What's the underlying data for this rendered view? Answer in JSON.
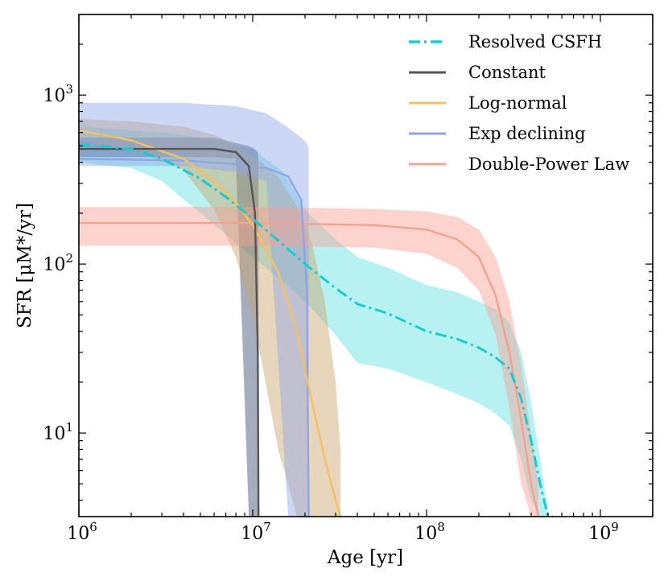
{
  "chart_data": {
    "type": "line",
    "xlabel": "Age [yr]",
    "ylabel": "SFR [μM*/yr]",
    "xscale": "log",
    "yscale": "log",
    "xlim": [
      1000000,
      2000000000
    ],
    "ylim": [
      3.2,
      3000
    ],
    "x_ticks": [
      {
        "value": 1000000,
        "base": "10",
        "exp": "6"
      },
      {
        "value": 10000000,
        "base": "10",
        "exp": "7"
      },
      {
        "value": 100000000,
        "base": "10",
        "exp": "8"
      },
      {
        "value": 1000000000,
        "base": "10",
        "exp": "9"
      }
    ],
    "y_ticks": [
      {
        "value": 10,
        "base": "10",
        "exp": "1"
      },
      {
        "value": 100,
        "base": "10",
        "exp": "2"
      },
      {
        "value": 1000,
        "base": "10",
        "exp": "3"
      }
    ],
    "legend_position": "top-right",
    "grid": false,
    "series": [
      {
        "name": "Resolved CSFH",
        "color": "#17cdd0",
        "band_color": "#5fe0e2",
        "dash": "dashdot",
        "x": [
          1000000,
          2000000,
          3000000,
          5000000,
          7000000,
          10000000,
          15000000,
          20000000,
          30000000,
          40000000,
          60000000,
          100000000,
          150000000,
          200000000,
          250000000,
          300000000,
          350000000,
          400000000,
          450000000,
          480000000,
          500000000
        ],
        "y": [
          510,
          480,
          420,
          320,
          250,
          185,
          130,
          100,
          72,
          58,
          51,
          40,
          36,
          32,
          28,
          24,
          16,
          9,
          5,
          3.8,
          3.2
        ],
        "lower": [
          400,
          370,
          310,
          200,
          150,
          110,
          78,
          60,
          38,
          26,
          24,
          20,
          17,
          15,
          13,
          11,
          7,
          4,
          3.2,
          3.2,
          3.2
        ],
        "upper": [
          650,
          620,
          600,
          560,
          520,
          480,
          350,
          210,
          140,
          110,
          95,
          75,
          68,
          60,
          54,
          45,
          30,
          15,
          7,
          4.5,
          3.5
        ]
      },
      {
        "name": "Constant",
        "color": "#555555",
        "band_color": "#3a4a6e",
        "dash": "solid",
        "x": [
          1000000,
          3000000,
          6000000,
          8000000,
          9500000,
          10300000,
          10700000,
          10800000
        ],
        "y": [
          480,
          480,
          480,
          460,
          380,
          200,
          30,
          3.2
        ],
        "lower": [
          430,
          430,
          430,
          420,
          3.2,
          3.2,
          3.2,
          3.2
        ],
        "upper": [
          560,
          560,
          560,
          520,
          500,
          480,
          460,
          400
        ]
      },
      {
        "name": "Log-normal",
        "color": "#f5c060",
        "band_color": "#c9a36a",
        "dash": "solid",
        "x": [
          1000000,
          2000000,
          4000000,
          6000000,
          8000000,
          10000000,
          14000000,
          18000000,
          22000000,
          26000000,
          30000000,
          32000000
        ],
        "y": [
          620,
          540,
          420,
          310,
          230,
          170,
          90,
          40,
          15,
          7,
          4,
          3.2
        ],
        "lower": [
          540,
          480,
          360,
          210,
          110,
          50,
          8,
          3.2,
          3.2,
          3.2,
          3.2,
          3.2
        ],
        "upper": [
          720,
          700,
          650,
          580,
          510,
          440,
          330,
          220,
          130,
          60,
          20,
          8
        ]
      },
      {
        "name": "Exp declining",
        "color": "#8ea6e8",
        "band_color": "#8ea6e8",
        "dash": "solid",
        "x": [
          1000000,
          4000000,
          8000000,
          12000000,
          16000000,
          19000000,
          20500000,
          21000000
        ],
        "y": [
          420,
          410,
          390,
          370,
          330,
          240,
          70,
          3.2
        ],
        "lower": [
          380,
          380,
          350,
          310,
          3.2,
          3.2,
          3.2,
          3.2
        ],
        "upper": [
          900,
          900,
          860,
          780,
          640,
          560,
          520,
          480
        ]
      },
      {
        "name": "Double-Power Law",
        "color": "#f8a090",
        "band_color": "#f8a090",
        "dash": "solid",
        "x": [
          1000000,
          10000000,
          50000000,
          100000000,
          150000000,
          200000000,
          250000000,
          300000000,
          350000000,
          400000000,
          440000000
        ],
        "y": [
          175,
          175,
          170,
          160,
          140,
          110,
          65,
          30,
          12,
          5,
          3.2
        ],
        "lower": [
          128,
          128,
          125,
          115,
          95,
          70,
          38,
          14,
          5,
          3.2,
          3.2
        ],
        "upper": [
          218,
          218,
          212,
          205,
          190,
          160,
          110,
          60,
          25,
          10,
          5
        ]
      }
    ]
  }
}
